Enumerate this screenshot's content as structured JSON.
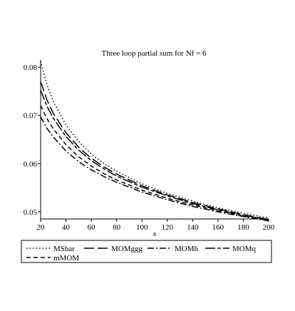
{
  "chart_data": {
    "type": "line",
    "title": "Three loop partial sum for Nf = 6",
    "xlabel": "x",
    "ylabel": "",
    "xlim": [
      20,
      200
    ],
    "ylim": [
      0.0485,
      0.0815
    ],
    "x_ticks": [
      "20",
      "40",
      "60",
      "80",
      "100",
      "120",
      "140",
      "160",
      "180",
      "200"
    ],
    "y_ticks": [
      "0.05",
      "0.06",
      "0.07",
      "0.08"
    ],
    "grid": false,
    "legend_position": "bottom",
    "x": [
      20,
      25,
      30,
      40,
      50,
      60,
      70,
      80,
      100,
      120,
      140,
      160,
      180,
      200
    ],
    "series": [
      {
        "name": "MSbar",
        "dash": "dotted",
        "values": [
          0.0812,
          0.0764,
          0.0729,
          0.068,
          0.0646,
          0.062,
          0.06,
          0.0584,
          0.0558,
          0.0538,
          0.0522,
          0.0508,
          0.0497,
          0.0487
        ]
      },
      {
        "name": "MOMggg",
        "dash": "long-dash",
        "values": [
          0.077,
          0.0732,
          0.0704,
          0.0664,
          0.0634,
          0.0611,
          0.0593,
          0.0578,
          0.0554,
          0.0535,
          0.0519,
          0.0506,
          0.0494,
          0.0484
        ]
      },
      {
        "name": "MOMh",
        "dash": "dash-dot",
        "values": [
          0.0697,
          0.0673,
          0.0655,
          0.0626,
          0.0604,
          0.0587,
          0.0573,
          0.0561,
          0.0541,
          0.0525,
          0.0511,
          0.05,
          0.049,
          0.0481
        ]
      },
      {
        "name": "MOMq",
        "dash": "long-short-dash",
        "values": [
          0.0752,
          0.0719,
          0.0694,
          0.0656,
          0.0628,
          0.0606,
          0.0589,
          0.0574,
          0.0551,
          0.0533,
          0.0517,
          0.0504,
          0.0493,
          0.0483
        ]
      },
      {
        "name": "mMOM",
        "dash": "short-dash",
        "values": [
          0.072,
          0.0693,
          0.0672,
          0.0639,
          0.0614,
          0.0595,
          0.0579,
          0.0566,
          0.0545,
          0.0528,
          0.0514,
          0.0502,
          0.0491,
          0.0482
        ]
      }
    ]
  }
}
